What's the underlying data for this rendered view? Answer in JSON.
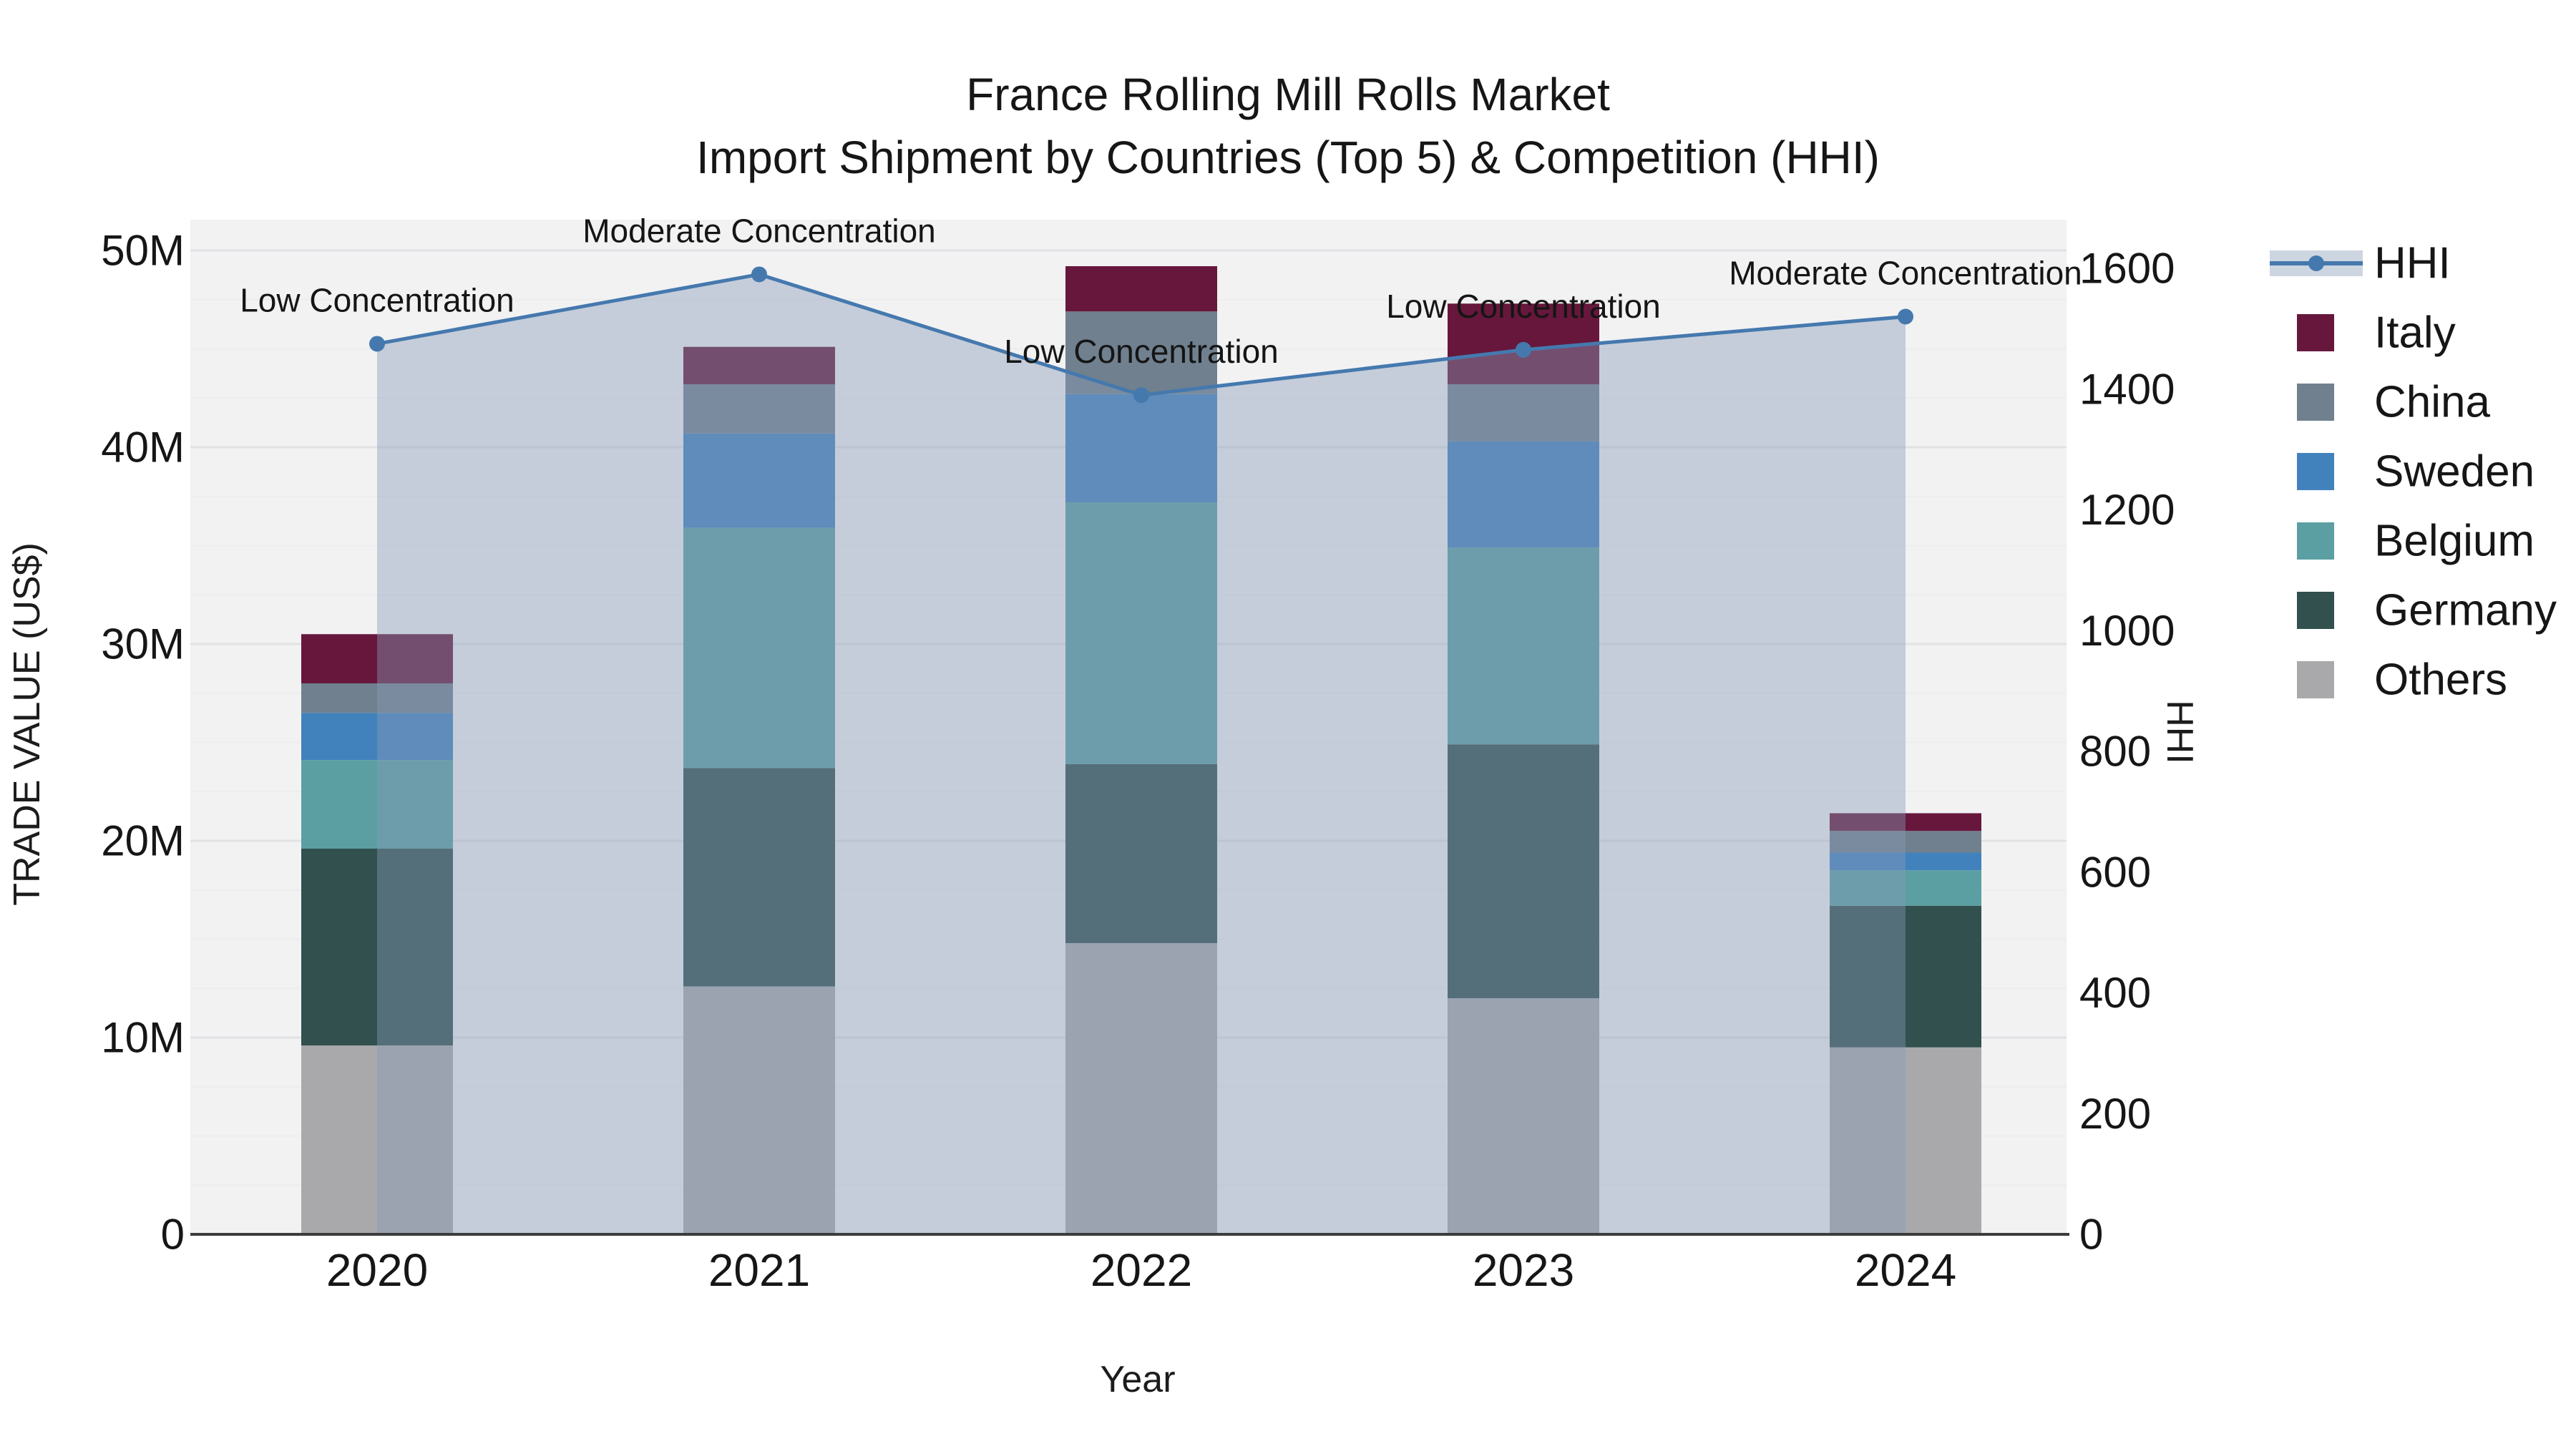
{
  "title": {
    "line1": "France Rolling Mill Rolls Market",
    "line2": "Import Shipment by Countries (Top 5) & Competition (HHI)"
  },
  "chart_data": {
    "type": "bar",
    "subtype": "stacked-bars-with-line-and-area",
    "title": "France Rolling Mill Rolls Market — Import Shipment by Countries (Top 5) & Competition (HHI)",
    "xlabel": "Year",
    "ylabel_left": "TRADE VALUE (US$)",
    "ylabel_right": "HHI",
    "categories": [
      "2020",
      "2021",
      "2022",
      "2023",
      "2024"
    ],
    "value_unit": "US$ millions",
    "series": [
      {
        "name": "Others",
        "color": "#A9A9AB",
        "values": [
          9.6,
          12.6,
          14.8,
          12.0,
          9.5
        ]
      },
      {
        "name": "Germany",
        "color": "#31504E",
        "values": [
          10.0,
          11.1,
          9.1,
          12.9,
          7.2
        ]
      },
      {
        "name": "Belgium",
        "color": "#5B9FA3",
        "values": [
          4.5,
          12.2,
          13.3,
          10.0,
          1.8
        ]
      },
      {
        "name": "Sweden",
        "color": "#4282BC",
        "values": [
          2.4,
          4.8,
          5.5,
          5.4,
          0.9
        ]
      },
      {
        "name": "China",
        "color": "#70808F",
        "values": [
          1.5,
          2.5,
          4.2,
          2.9,
          1.1
        ]
      },
      {
        "name": "Italy",
        "color": "#67173C",
        "values": [
          2.5,
          1.9,
          2.3,
          4.1,
          0.9
        ]
      }
    ],
    "line_series": {
      "name": "HHI",
      "color": "#4579AE",
      "area_fill_color": "rgba(135,154,184,0.42)",
      "values": [
        1475,
        1590,
        1390,
        1465,
        1520
      ]
    },
    "annotations": [
      {
        "category": "2020",
        "text": "Low Concentration"
      },
      {
        "category": "2021",
        "text": "Moderate Concentration"
      },
      {
        "category": "2022",
        "text": "Low Concentration"
      },
      {
        "category": "2023",
        "text": "Low Concentration"
      },
      {
        "category": "2024",
        "text": "Moderate Concentration"
      }
    ],
    "y_left_axis": {
      "min": 0,
      "max": 50,
      "tick_step": 10,
      "tick_labels": [
        "0",
        "10M",
        "20M",
        "30M",
        "40M",
        "50M"
      ]
    },
    "y_right_axis": {
      "min": 0,
      "max": 1600,
      "tick_step": 200,
      "tick_labels": [
        "0",
        "200",
        "400",
        "600",
        "800",
        "1000",
        "1200",
        "1400",
        "1600"
      ]
    },
    "legend_order": [
      "HHI",
      "Italy",
      "China",
      "Sweden",
      "Belgium",
      "Germany",
      "Others"
    ],
    "grid": {
      "major": true,
      "minor": true
    },
    "legend_position": "right"
  },
  "style": {
    "plot_bg": "#F2F2F3",
    "grid_major": "#E2E2E6",
    "grid_minor": "#ECECEF",
    "axis_line": "#3C3C3C",
    "text_color": "#161616"
  }
}
